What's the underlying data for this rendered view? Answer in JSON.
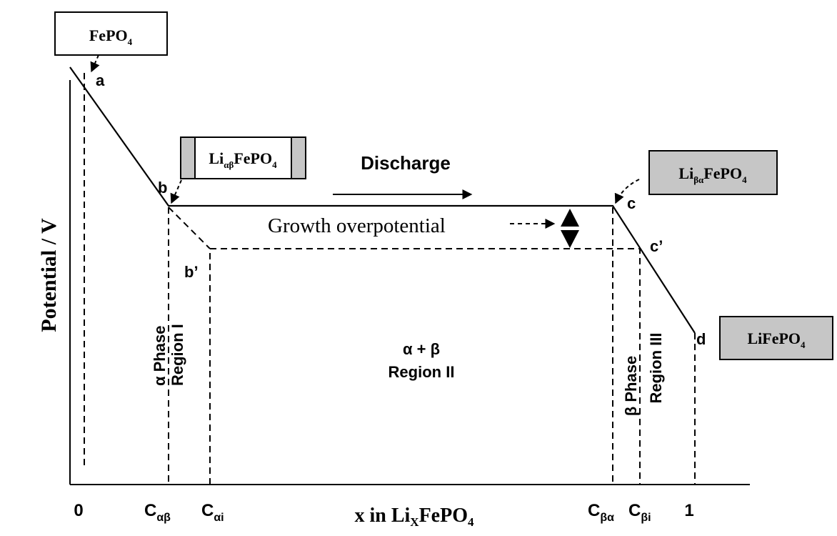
{
  "axes": {
    "y_label": "Potential / V",
    "x_label_prefix": "x in Li",
    "x_label_sub": "X",
    "x_label_suffix": "FePO",
    "x_label_sub2": "4",
    "ticks": [
      {
        "main": "0",
        "sub": ""
      },
      {
        "main": "C",
        "sub": "αβ"
      },
      {
        "main": "C",
        "sub": "αi"
      },
      {
        "main": "C",
        "sub": "βα"
      },
      {
        "main": "C",
        "sub": "βi"
      },
      {
        "main": "1",
        "sub": ""
      }
    ]
  },
  "boxes": {
    "fepo4": {
      "main": "FePO",
      "sub": "4"
    },
    "li_ab": {
      "main": "Li",
      "sub": "αβ",
      "rest": "FePO",
      "sub2": "4"
    },
    "li_ba": {
      "main": "Li",
      "sub": "βα",
      "rest": "FePO",
      "sub2": "4"
    },
    "lifepo4": {
      "main": "LiFePO",
      "sub": "4"
    }
  },
  "points": {
    "a": "a",
    "b": "b",
    "b_prime": "b’",
    "c": "c",
    "c_prime": "c’",
    "d": "d"
  },
  "annotations": {
    "discharge": "Discharge",
    "growth": "Growth overpotential",
    "region1_a": "α  Phase",
    "region1_b": "Region I",
    "region2_a": "α + β",
    "region2_b": "Region II",
    "region3_a": "β Phase",
    "region3_b": "Region III"
  },
  "colors": {
    "box_fill_gray": "#c6c6c6",
    "line": "#000000"
  }
}
